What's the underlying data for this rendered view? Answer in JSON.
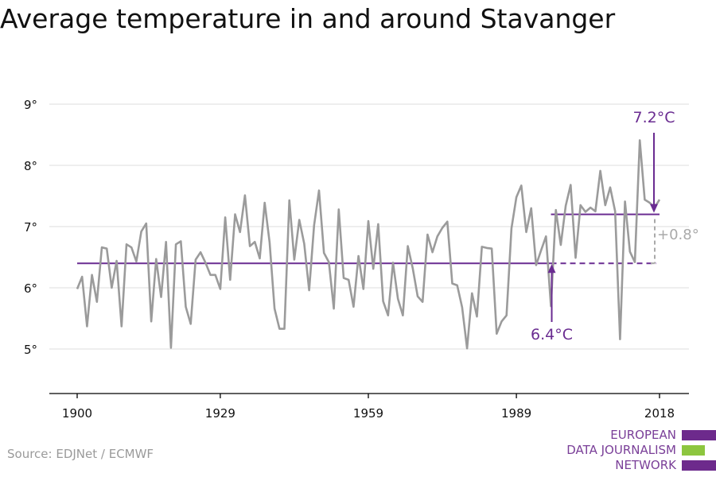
{
  "title": "Average temperature in and around Stavanger",
  "source": "Source: EDJNet / ECMWF",
  "logo": {
    "lines": [
      "EUROPEAN",
      "DATA JOURNALISM",
      "NETWORK"
    ],
    "colors": {
      "purple": "#6d2a8c",
      "green": "#8dc63f"
    }
  },
  "colors": {
    "series": "#9b9b9b",
    "reference": "#6a2c91",
    "difference": "#a9a9a9",
    "grid": "#dddddd",
    "axis": "#000000"
  },
  "chart_data": {
    "type": "line",
    "title": "Average temperature in and around Stavanger",
    "xlabel": "",
    "ylabel": "",
    "xlim": [
      1900,
      2018
    ],
    "ylim": [
      4.3,
      9.3
    ],
    "grid": true,
    "x_ticks": [
      1900,
      1929,
      1959,
      1989,
      2018
    ],
    "x_tick_labels": [
      "1900",
      "1929",
      "1959",
      "1989",
      "2018"
    ],
    "y_ticks": [
      5,
      6,
      7,
      8,
      9
    ],
    "y_tick_labels": [
      "5°",
      "6°",
      "7°",
      "8°",
      "9°"
    ],
    "series": [
      {
        "x": [
          1900,
          1901,
          1902,
          1903,
          1904,
          1905,
          1906,
          1907,
          1908,
          1909,
          1910,
          1911,
          1912,
          1913,
          1914,
          1915,
          1916,
          1917,
          1918,
          1919,
          1920,
          1921,
          1922,
          1923,
          1924,
          1925,
          1926,
          1927,
          1928,
          1929,
          1930,
          1931,
          1932,
          1933,
          1934,
          1935,
          1936,
          1937,
          1938,
          1939,
          1940,
          1941,
          1942,
          1943,
          1944,
          1945,
          1946,
          1947,
          1948,
          1949,
          1950,
          1951,
          1952,
          1953,
          1954,
          1955,
          1956,
          1957,
          1958,
          1959,
          1960,
          1961,
          1962,
          1963,
          1964,
          1965,
          1966,
          1967,
          1968,
          1969,
          1970,
          1971,
          1972,
          1973,
          1974,
          1975,
          1976,
          1977,
          1978,
          1979,
          1980,
          1981,
          1982,
          1983,
          1984,
          1985,
          1986,
          1987,
          1988,
          1989,
          1990,
          1991,
          1992,
          1993,
          1994,
          1995,
          1996,
          1997,
          1998,
          1999,
          2000,
          2001,
          2002,
          2003,
          2004,
          2005,
          2006,
          2007,
          2008,
          2009,
          2010,
          2011,
          2012,
          2013,
          2014,
          2015,
          2016,
          2017,
          2018
        ],
        "values": [
          5.98,
          6.18,
          5.37,
          6.21,
          5.77,
          6.66,
          6.64,
          6.0,
          6.44,
          5.37,
          6.71,
          6.66,
          6.43,
          6.92,
          7.05,
          5.45,
          6.47,
          5.85,
          6.75,
          5.02,
          6.71,
          6.76,
          5.69,
          5.41,
          6.46,
          6.58,
          6.41,
          6.21,
          6.21,
          5.98,
          7.15,
          6.13,
          7.2,
          6.91,
          7.51,
          6.68,
          6.75,
          6.48,
          7.39,
          6.74,
          5.66,
          5.33,
          5.33,
          7.43,
          6.46,
          7.11,
          6.72,
          5.96,
          7.02,
          7.59,
          6.57,
          6.42,
          5.66,
          7.28,
          6.16,
          6.13,
          5.69,
          6.52,
          5.98,
          7.09,
          6.31,
          7.04,
          5.78,
          5.55,
          6.41,
          5.82,
          5.55,
          6.68,
          6.32,
          5.86,
          5.77,
          6.87,
          6.58,
          6.84,
          6.98,
          7.08,
          6.07,
          6.04,
          5.68,
          5.01,
          5.91,
          5.53,
          6.67,
          6.65,
          6.64,
          5.25,
          5.45,
          5.55,
          6.97,
          7.48,
          7.67,
          6.91,
          7.3,
          6.37,
          6.61,
          6.84,
          5.7,
          7.27,
          6.7,
          7.34,
          7.68,
          6.49,
          7.35,
          7.24,
          7.31,
          7.25,
          7.91,
          7.35,
          7.64,
          7.25,
          5.16,
          7.41,
          6.59,
          6.42,
          8.41,
          7.44,
          7.39,
          7.31,
          7.44
        ]
      }
    ],
    "reference_lines": [
      {
        "label": "6.4°C",
        "value": 6.4,
        "x_start": 1900,
        "x_end": 2018,
        "solid_until": 1996
      },
      {
        "label": "7.2°C",
        "value": 7.2,
        "x_start": 1996,
        "x_end": 2018
      }
    ],
    "annotations": [
      {
        "text": "6.4°C",
        "x": 1996,
        "y": 6.4
      },
      {
        "text": "7.2°C",
        "x": 2018,
        "y": 7.2
      },
      {
        "text": "+0.8°",
        "x": 2018,
        "y": 6.8
      }
    ]
  }
}
